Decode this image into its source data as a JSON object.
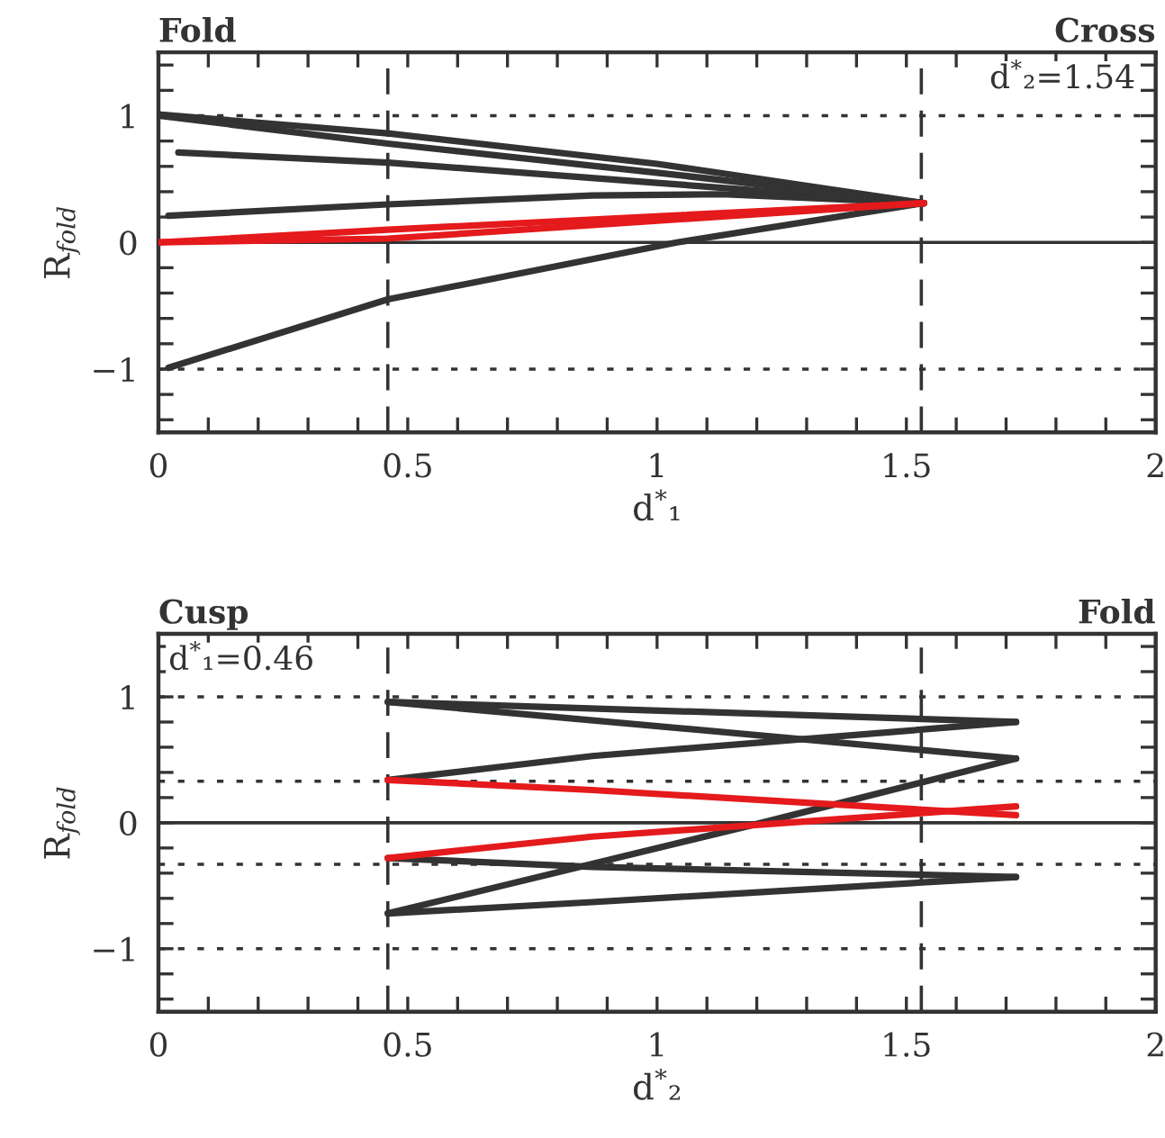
{
  "chart_data": [
    {
      "type": "line",
      "xlabel": "d$^{*}$₁",
      "ylabel": "R$_{fold}$",
      "annotations": [
        "Fold",
        "Cross",
        "d$^{*}$₂=1.54"
      ],
      "xlim": [
        0,
        2
      ],
      "ylim": [
        -1.5,
        1.5
      ],
      "xticks": [
        0,
        {
          "value": 0.1,
          "label": null
        },
        {
          "value": 0.2,
          "label": null
        },
        {
          "value": 0.3,
          "label": null
        },
        {
          "value": 0.4,
          "label": null
        },
        0.5,
        {
          "value": 0.6,
          "label": null
        },
        {
          "value": 0.7,
          "label": null
        },
        {
          "value": 0.8,
          "label": null
        },
        {
          "value": 0.9,
          "label": null
        },
        1,
        {
          "value": 1.1,
          "label": null
        },
        {
          "value": 1.2,
          "label": null
        },
        {
          "value": 1.3,
          "label": null
        },
        {
          "value": 1.4,
          "label": null
        },
        1.5,
        {
          "value": 1.6,
          "label": null
        },
        {
          "value": 1.7,
          "label": null
        },
        {
          "value": 1.8,
          "label": null
        },
        {
          "value": 1.9,
          "label": null
        },
        2
      ],
      "yticks": [
        {
          "value": -1.4,
          "label": null
        },
        {
          "value": -1.2,
          "label": null
        },
        {
          "value": -1,
          "label": "−1"
        },
        {
          "value": -0.8,
          "label": null
        },
        {
          "value": -0.6,
          "label": null
        },
        {
          "value": -0.4,
          "label": null
        },
        {
          "value": -0.2,
          "label": null
        },
        0,
        {
          "value": 0.2,
          "label": null
        },
        {
          "value": 0.4,
          "label": null
        },
        {
          "value": 0.6,
          "label": null
        },
        {
          "value": 0.8,
          "label": null
        },
        1,
        {
          "value": 1.2,
          "label": null
        },
        {
          "value": 1.4,
          "label": null
        }
      ],
      "grid": false,
      "marker": "none",
      "line_style": "solid",
      "ref_lines": [
        {
          "axis": "y",
          "value": 0,
          "color": "#333333",
          "line_style": "solid"
        },
        {
          "axis": "y",
          "value": 1,
          "color": "#333333",
          "line_style": "dotted"
        },
        {
          "axis": "y",
          "value": -1,
          "color": "#333333",
          "line_style": "dotted"
        },
        {
          "axis": "x",
          "value": 0.46,
          "color": "#333333",
          "line_style": "dashed"
        },
        {
          "axis": "x",
          "value": 1.53,
          "color": "#333333",
          "line_style": "dashed"
        }
      ],
      "series": [
        {
          "color": "#333333",
          "x": [
            0,
            0.46,
            1.0,
            1.535
          ],
          "values": [
            1.01,
            0.86,
            0.62,
            0.31
          ]
        },
        {
          "color": "#333333",
          "x": [
            0,
            0.46,
            1.0,
            1.535
          ],
          "values": [
            1.0,
            0.78,
            0.55,
            0.31
          ]
        },
        {
          "color": "#333333",
          "x": [
            0.04,
            0.46,
            1.0,
            1.535
          ],
          "values": [
            0.71,
            0.63,
            0.47,
            0.31
          ]
        },
        {
          "color": "#333333",
          "x": [
            0.02,
            0.46,
            0.87,
            1.13,
            1.535
          ],
          "values": [
            0.21,
            0.3,
            0.37,
            0.38,
            0.31
          ]
        },
        {
          "color": "#333333",
          "x": [
            0.02,
            0.46,
            1.04,
            1.535
          ],
          "values": [
            -0.99,
            -0.45,
            0,
            0.31
          ]
        },
        {
          "color": "#e41a1c",
          "x": [
            0,
            0.46,
            1.535
          ],
          "values": [
            0,
            0.1,
            0.31
          ]
        },
        {
          "color": "#e41a1c",
          "x": [
            0,
            0.46,
            1.535
          ],
          "values": [
            0,
            0.03,
            0.31
          ]
        }
      ]
    },
    {
      "type": "line",
      "xlabel": "d$^{*}$₂",
      "ylabel": "R$_{fold}$",
      "annotations": [
        "Cusp",
        "Fold",
        "d$^{*}$₁=0.46"
      ],
      "xlim": [
        0,
        2
      ],
      "ylim": [
        -1.5,
        1.5
      ],
      "xticks": [
        0,
        {
          "value": 0.1,
          "label": null
        },
        {
          "value": 0.2,
          "label": null
        },
        {
          "value": 0.3,
          "label": null
        },
        {
          "value": 0.4,
          "label": null
        },
        0.5,
        {
          "value": 0.6,
          "label": null
        },
        {
          "value": 0.7,
          "label": null
        },
        {
          "value": 0.8,
          "label": null
        },
        {
          "value": 0.9,
          "label": null
        },
        1,
        {
          "value": 1.1,
          "label": null
        },
        {
          "value": 1.2,
          "label": null
        },
        {
          "value": 1.3,
          "label": null
        },
        {
          "value": 1.4,
          "label": null
        },
        1.5,
        {
          "value": 1.6,
          "label": null
        },
        {
          "value": 1.7,
          "label": null
        },
        {
          "value": 1.8,
          "label": null
        },
        {
          "value": 1.9,
          "label": null
        },
        2
      ],
      "yticks": [
        {
          "value": -1.4,
          "label": null
        },
        {
          "value": -1.2,
          "label": null
        },
        {
          "value": -1,
          "label": "−1"
        },
        {
          "value": -0.8,
          "label": null
        },
        {
          "value": -0.6,
          "label": null
        },
        {
          "value": -0.4,
          "label": null
        },
        {
          "value": -0.2,
          "label": null
        },
        0,
        {
          "value": 0.2,
          "label": null
        },
        {
          "value": 0.4,
          "label": null
        },
        {
          "value": 0.6,
          "label": null
        },
        {
          "value": 0.8,
          "label": null
        },
        1,
        {
          "value": 1.2,
          "label": null
        },
        {
          "value": 1.4,
          "label": null
        }
      ],
      "grid": false,
      "marker": "none",
      "line_style": "solid",
      "ref_lines": [
        {
          "axis": "y",
          "value": 0,
          "color": "#333333",
          "line_style": "solid"
        },
        {
          "axis": "y",
          "value": 1,
          "color": "#333333",
          "line_style": "dotted"
        },
        {
          "axis": "y",
          "value": -1,
          "color": "#333333",
          "line_style": "dotted"
        },
        {
          "axis": "y",
          "value": 0.33,
          "color": "#333333",
          "line_style": "dotted"
        },
        {
          "axis": "y",
          "value": -0.33,
          "color": "#333333",
          "line_style": "dotted"
        },
        {
          "axis": "x",
          "value": 0.46,
          "color": "#333333",
          "line_style": "dashed"
        },
        {
          "axis": "x",
          "value": 1.53,
          "color": "#333333",
          "line_style": "dashed"
        }
      ],
      "series": [
        {
          "color": "#333333",
          "x": [
            0.46,
            1.72
          ],
          "values": [
            0.96,
            0.8
          ]
        },
        {
          "color": "#333333",
          "x": [
            0.46,
            0.87,
            1.72
          ],
          "values": [
            0.34,
            0.53,
            0.8
          ]
        },
        {
          "color": "#333333",
          "x": [
            0.46,
            1.72
          ],
          "values": [
            0.96,
            0.51
          ]
        },
        {
          "color": "#333333",
          "x": [
            0.46,
            1.21,
            1.72
          ],
          "values": [
            -0.72,
            0,
            0.51
          ]
        },
        {
          "color": "#333333",
          "x": [
            0.46,
            0.87,
            1.72
          ],
          "values": [
            -0.72,
            -0.63,
            -0.43
          ]
        },
        {
          "color": "#333333",
          "x": [
            0.46,
            0.87,
            1.72
          ],
          "values": [
            -0.28,
            -0.35,
            -0.43
          ]
        },
        {
          "color": "#e41a1c",
          "x": [
            0.46,
            0.87,
            1.72
          ],
          "values": [
            0.34,
            0.26,
            0.06
          ]
        },
        {
          "color": "#e41a1c",
          "x": [
            0.46,
            0.87,
            1.72
          ],
          "values": [
            -0.28,
            -0.11,
            0.13
          ]
        }
      ]
    }
  ]
}
